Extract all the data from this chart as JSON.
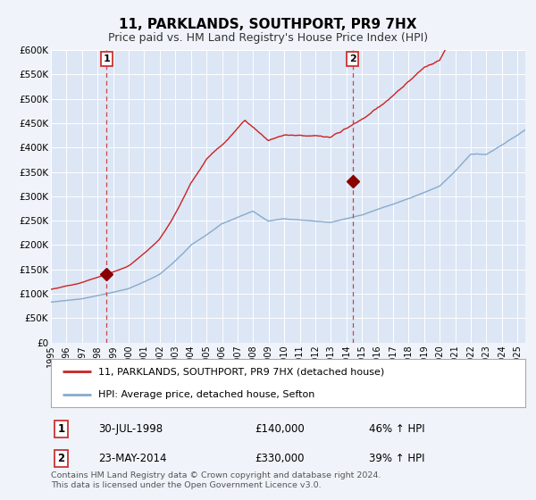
{
  "title": "11, PARKLANDS, SOUTHPORT, PR9 7HX",
  "subtitle": "Price paid vs. HM Land Registry's House Price Index (HPI)",
  "bg_color": "#f0f4fa",
  "plot_bg_color": "#dce6f5",
  "grid_color": "#ffffff",
  "red_line_color": "#cc2222",
  "blue_line_color": "#88aacc",
  "marker_color": "#880000",
  "dashed_line_color": "#cc4444",
  "ylim": [
    0,
    600000
  ],
  "yticks": [
    0,
    50000,
    100000,
    150000,
    200000,
    250000,
    300000,
    350000,
    400000,
    450000,
    500000,
    550000,
    600000
  ],
  "sale1": {
    "date_num": 1998.58,
    "price": 140000,
    "label": "1"
  },
  "sale2": {
    "date_num": 2014.39,
    "price": 330000,
    "label": "2"
  },
  "legend_line1": "11, PARKLANDS, SOUTHPORT, PR9 7HX (detached house)",
  "legend_line2": "HPI: Average price, detached house, Sefton",
  "footer": "Contains HM Land Registry data © Crown copyright and database right 2024.\nThis data is licensed under the Open Government Licence v3.0.",
  "xmin": 1995.0,
  "xmax": 2025.5
}
